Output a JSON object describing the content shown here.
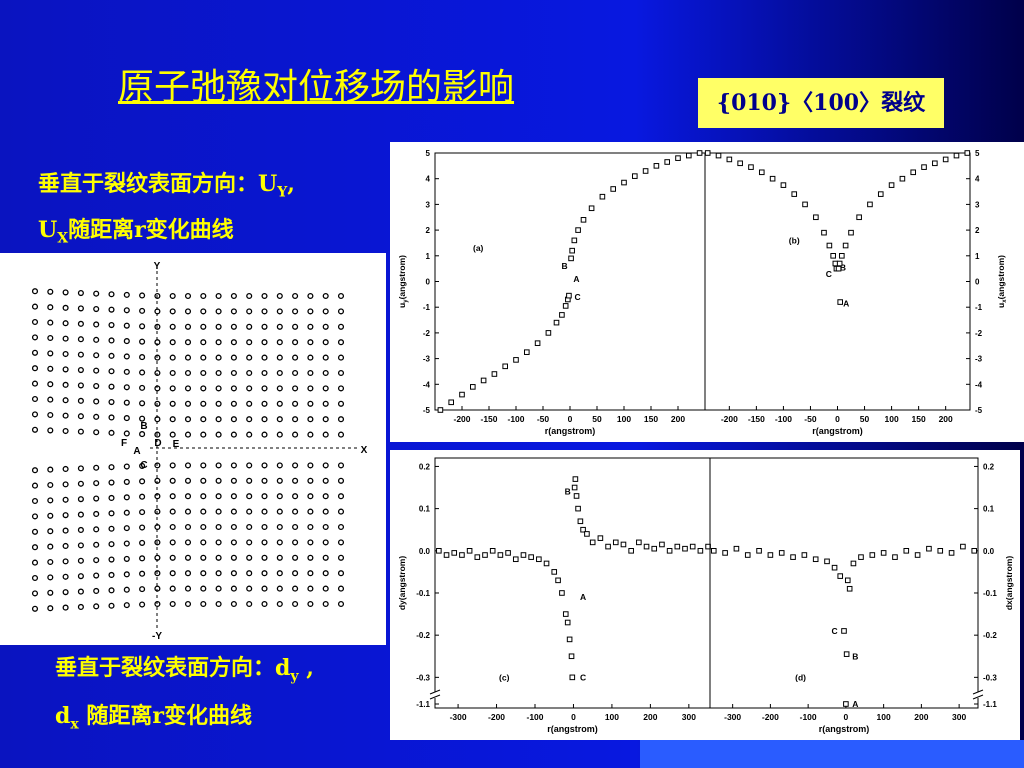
{
  "header": {
    "title": "原子弛豫对位移场的影响",
    "tag": "{010}〈100〉裂纹"
  },
  "notes": [
    {
      "parts": [
        "垂直于裂纹表面方向：U",
        "Y",
        ",",
        "U",
        "X",
        "随距离r变化曲线"
      ]
    },
    {
      "parts": [
        "垂直于裂纹表面方向：d",
        "y",
        " ,",
        "d",
        "x",
        " 随距离r变化曲线"
      ]
    }
  ],
  "lattice": {
    "labels": [
      "Y",
      "X",
      "-Y",
      "A",
      "B",
      "C",
      "D",
      "E",
      "F"
    ]
  },
  "chart_data": [
    {
      "type": "scatter",
      "ylabel": [
        "u",
        "y",
        "(angstrom)"
      ],
      "xlabel": "r(angstrom)",
      "x": [
        -240,
        -220,
        -200,
        -180,
        -160,
        -140,
        -120,
        -100,
        -80,
        -60,
        -40,
        -25,
        -15,
        -8,
        -4,
        -2,
        2,
        4,
        8,
        15,
        25,
        40,
        60,
        80,
        100,
        120,
        140,
        160,
        180,
        200,
        220,
        240
      ],
      "values": [
        -5.0,
        -4.7,
        -4.4,
        -4.1,
        -3.85,
        -3.6,
        -3.3,
        -3.05,
        -2.75,
        -2.4,
        -2.0,
        -1.6,
        -1.3,
        -0.95,
        -0.7,
        -0.55,
        0.9,
        1.2,
        1.6,
        2.0,
        2.4,
        2.85,
        3.3,
        3.6,
        3.85,
        4.1,
        4.3,
        4.5,
        4.65,
        4.8,
        4.9,
        5.0
      ],
      "xlim": [
        -250,
        250
      ],
      "ylim": [
        -5,
        5
      ],
      "xticks": [
        -200,
        -150,
        -100,
        -50,
        0,
        50,
        100,
        150,
        200
      ],
      "yticks": [
        -5,
        -4,
        -3,
        -2,
        -1,
        0,
        1,
        2,
        3,
        4,
        5
      ],
      "annotations": [
        {
          "text": "(a)",
          "x": -170,
          "y": 1.3
        },
        {
          "text": "B",
          "x": -10,
          "y": 0.6
        },
        {
          "text": "A",
          "x": 12,
          "y": 0.1
        },
        {
          "text": "C",
          "x": 14,
          "y": -0.6
        }
      ]
    },
    {
      "type": "scatter",
      "ylabel": [
        "u",
        "x",
        "(angstrom)"
      ],
      "xlabel": "r(angstrom)",
      "x": [
        -240,
        -220,
        -200,
        -180,
        -160,
        -140,
        -120,
        -100,
        -80,
        -60,
        -40,
        -25,
        -15,
        -8,
        -4,
        -2,
        2,
        4,
        8,
        15,
        25,
        40,
        60,
        80,
        100,
        120,
        140,
        160,
        180,
        200,
        220,
        240,
        5
      ],
      "values": [
        5.0,
        4.9,
        4.75,
        4.6,
        4.45,
        4.25,
        4.0,
        3.75,
        3.4,
        3.0,
        2.5,
        1.9,
        1.4,
        1.0,
        0.7,
        0.5,
        0.5,
        0.7,
        1.0,
        1.4,
        1.9,
        2.5,
        3.0,
        3.4,
        3.75,
        4.0,
        4.25,
        4.45,
        4.6,
        4.75,
        4.9,
        5.0,
        -0.8
      ],
      "xlim": [
        -245,
        245
      ],
      "ylim": [
        -5,
        5
      ],
      "xticks": [
        -200,
        -150,
        -100,
        -50,
        0,
        50,
        100,
        150,
        200
      ],
      "yticks": [
        -5,
        -4,
        -3,
        -2,
        -1,
        0,
        1,
        2,
        3,
        4,
        5
      ],
      "annotations": [
        {
          "text": "(b)",
          "x": -80,
          "y": 1.6
        },
        {
          "text": "C",
          "x": -16,
          "y": 0.3
        },
        {
          "text": "B",
          "x": 10,
          "y": 0.55
        },
        {
          "text": "A",
          "x": 16,
          "y": -0.85
        }
      ]
    },
    {
      "type": "scatter",
      "ylabel": [
        "dy(angstrom)"
      ],
      "xlabel": "r(angstrom)",
      "x": [
        -350,
        -330,
        -310,
        -290,
        -270,
        -250,
        -230,
        -210,
        -190,
        -170,
        -150,
        -130,
        -110,
        -90,
        -70,
        -50,
        -40,
        -30,
        -20,
        -15,
        -10,
        -5,
        -3,
        3,
        5,
        8,
        12,
        18,
        25,
        35,
        50,
        70,
        90,
        110,
        130,
        150,
        170,
        190,
        210,
        230,
        250,
        270,
        290,
        310,
        330,
        350
      ],
      "values": [
        0.0,
        -0.01,
        -0.005,
        -0.01,
        0.0,
        -0.015,
        -0.01,
        0.0,
        -0.01,
        -0.005,
        -0.02,
        -0.01,
        -0.015,
        -0.02,
        -0.03,
        -0.05,
        -0.07,
        -0.1,
        -0.15,
        -0.17,
        -0.21,
        -0.25,
        -0.3,
        0.15,
        0.17,
        0.13,
        0.1,
        0.07,
        0.05,
        0.04,
        0.02,
        0.03,
        0.01,
        0.02,
        0.015,
        0.0,
        0.02,
        0.01,
        0.005,
        0.015,
        0.0,
        0.01,
        0.005,
        0.01,
        0.0,
        0.01
      ],
      "xlim": [
        -360,
        355
      ],
      "ylim": [
        -1.12,
        0.22
      ],
      "y_break": [
        -0.33,
        -1.08
      ],
      "xticks": [
        -300,
        -200,
        -100,
        0,
        100,
        200,
        300
      ],
      "yticks": [
        -1.1,
        -0.3,
        -0.2,
        -0.1,
        {
          "value": 0,
          "label": "0.0"
        },
        0.1,
        0.2
      ],
      "annotations": [
        {
          "text": "(c)",
          "x": -180,
          "y": -0.3
        },
        {
          "text": "B",
          "x": -15,
          "y": 0.14
        },
        {
          "text": "A",
          "x": 25,
          "y": -0.11
        },
        {
          "text": "C",
          "x": 25,
          "y": -0.3
        }
      ]
    },
    {
      "type": "scatter",
      "ylabel": [
        "dx(angstrom)"
      ],
      "xlabel": "r(angstrom)",
      "x": [
        -350,
        -320,
        -290,
        -260,
        -230,
        -200,
        -170,
        -140,
        -110,
        -80,
        -50,
        -30,
        -15,
        -5,
        0,
        2,
        5,
        10,
        20,
        40,
        70,
        100,
        130,
        160,
        190,
        220,
        250,
        280,
        310,
        340
      ],
      "values": [
        0.0,
        -0.005,
        0.005,
        -0.01,
        0.0,
        -0.01,
        -0.005,
        -0.015,
        -0.01,
        -0.02,
        -0.025,
        -0.04,
        -0.06,
        -0.19,
        -1.1,
        -0.245,
        -0.07,
        -0.09,
        -0.03,
        -0.015,
        -0.01,
        -0.005,
        -0.015,
        0.0,
        -0.01,
        0.005,
        0.0,
        -0.005,
        0.01,
        0.0
      ],
      "xlim": [
        -360,
        350
      ],
      "ylim": [
        -1.12,
        0.22
      ],
      "y_break": [
        -0.33,
        -1.08
      ],
      "xticks": [
        -300,
        -200,
        -100,
        0,
        100,
        200,
        300
      ],
      "yticks": [
        -1.1,
        -0.3,
        -0.2,
        -0.1,
        {
          "value": 0,
          "label": "0.0"
        },
        0.1,
        0.2
      ],
      "annotations": [
        {
          "text": "(d)",
          "x": -120,
          "y": -0.3
        },
        {
          "text": "C",
          "x": -30,
          "y": -0.19
        },
        {
          "text": "B",
          "x": 25,
          "y": -0.25
        },
        {
          "text": "A",
          "x": 25,
          "y": -1.1
        }
      ]
    }
  ]
}
